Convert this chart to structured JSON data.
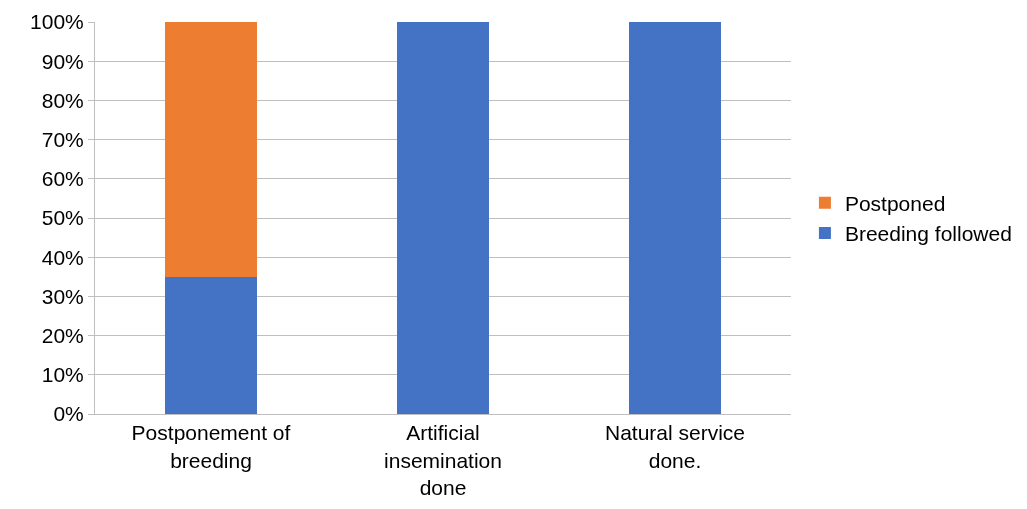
{
  "chart_data": {
    "type": "bar",
    "stacked": true,
    "categories": [
      "Postponement of breeding",
      "Artificial insemination done",
      "Natural service done."
    ],
    "series": [
      {
        "name": "Breeding followed",
        "color": "#4472c4",
        "values": [
          35,
          100,
          100
        ]
      },
      {
        "name": "Postponed",
        "color": "#ed7d31",
        "values": [
          65,
          0,
          0
        ]
      }
    ],
    "ylim": [
      0,
      100
    ],
    "yticks": [
      {
        "value": 0,
        "label": "0%"
      },
      {
        "value": 10,
        "label": "10%"
      },
      {
        "value": 20,
        "label": "20%"
      },
      {
        "value": 30,
        "label": "30%"
      },
      {
        "value": 40,
        "label": "40%"
      },
      {
        "value": 50,
        "label": "50%"
      },
      {
        "value": 60,
        "label": "60%"
      },
      {
        "value": 70,
        "label": "70%"
      },
      {
        "value": 80,
        "label": "80%"
      },
      {
        "value": 90,
        "label": "90%"
      },
      {
        "value": 100,
        "label": "100%"
      }
    ],
    "grid": "y",
    "legend": "right"
  }
}
